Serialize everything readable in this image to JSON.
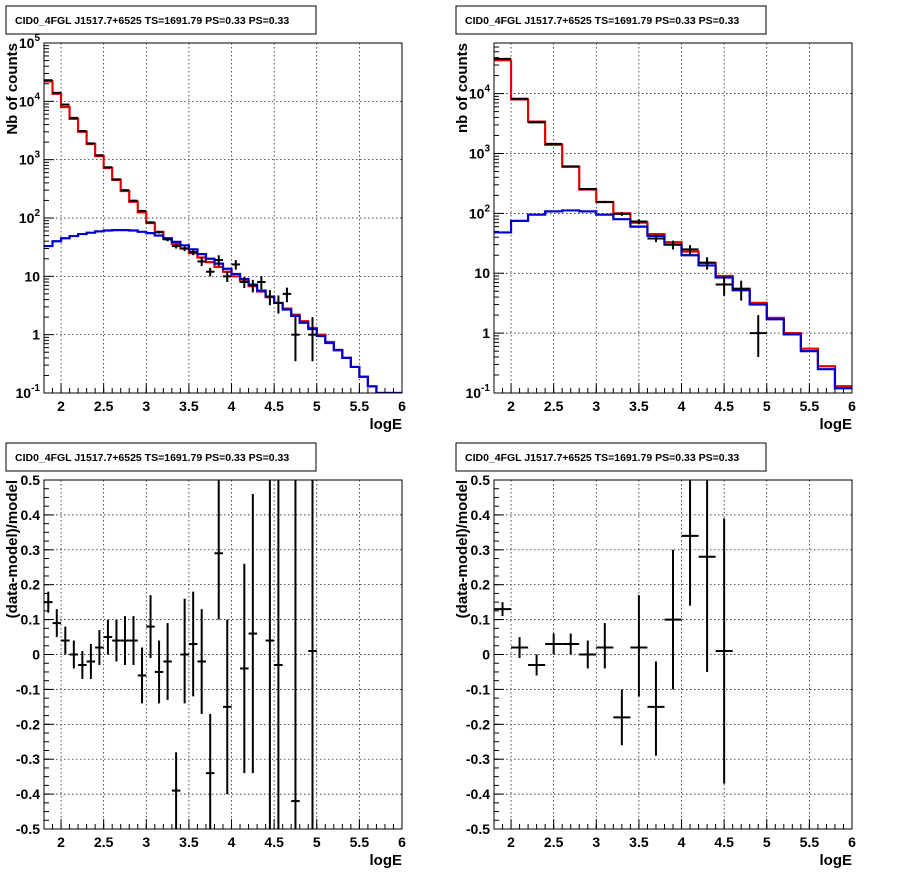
{
  "panels_title": "CID0_4FGL J1517.7+6525 TS=1691.79 PS=0.33 PS=0.33",
  "chart_data": [
    {
      "id": "counts-left",
      "type": "histogram",
      "title": "CID0_4FGL J1517.7+6525 TS=1691.79 PS=0.33 PS=0.33",
      "xlabel": "logE",
      "ylabel": "Nb of counts",
      "xlim": [
        1.8,
        6.0
      ],
      "ylim": [
        0.1,
        100000
      ],
      "log_y": true,
      "grid": true,
      "x_ticks": [
        "2",
        "2.5",
        "3",
        "3.5",
        "4",
        "4.5",
        "5",
        "5.5",
        "6"
      ],
      "y_ticks": [
        "10^-1",
        "1",
        "10",
        "10^2",
        "10^3",
        "10^4",
        "10^5"
      ],
      "bin_edges": [
        1.8,
        1.9,
        2.0,
        2.1,
        2.2,
        2.3,
        2.4,
        2.5,
        2.6,
        2.7,
        2.8,
        2.9,
        3.0,
        3.1,
        3.2,
        3.3,
        3.4,
        3.5,
        3.6,
        3.7,
        3.8,
        3.9,
        4.0,
        4.1,
        4.2,
        4.3,
        4.4,
        4.5,
        4.6,
        4.7,
        4.8,
        4.9,
        5.0,
        5.1,
        5.2,
        5.3,
        5.4,
        5.5,
        5.6,
        5.7,
        5.8,
        5.9,
        6.0
      ],
      "series": [
        {
          "name": "",
          "color": "#e00000",
          "style": "step",
          "values": [
            22000,
            13500,
            8000,
            5000,
            3000,
            1850,
            1150,
            720,
            450,
            290,
            190,
            125,
            82,
            58,
            44,
            36,
            30,
            25,
            21,
            17.5,
            14.5,
            12,
            10,
            8.2,
            6.8,
            5.5,
            4.4,
            3.5,
            2.8,
            2.2,
            1.7,
            1.3,
            1.0,
            0.75,
            0.55,
            0.4,
            0.28,
            0.19,
            0.13,
            0.1,
            0.1,
            0.1
          ]
        },
        {
          "name": "",
          "color": "#0000cc",
          "style": "step",
          "values": [
            33,
            40,
            45,
            49,
            53,
            56,
            59,
            61,
            62,
            62,
            61,
            58,
            55,
            50,
            45,
            39,
            34,
            29,
            24,
            20,
            16.5,
            13.5,
            11,
            9,
            7.2,
            5.7,
            4.5,
            3.5,
            2.7,
            2.1,
            1.6,
            1.25,
            0.95,
            0.72,
            0.54,
            0.4,
            0.28,
            0.19,
            0.13,
            0.1,
            0.1,
            0.1
          ]
        }
      ],
      "points": {
        "color": "#000000",
        "x": [
          1.85,
          1.95,
          2.05,
          2.15,
          2.25,
          2.35,
          2.45,
          2.55,
          2.65,
          2.75,
          2.85,
          2.95,
          3.05,
          3.15,
          3.25,
          3.35,
          3.45,
          3.55,
          3.65,
          3.75,
          3.85,
          3.95,
          4.05,
          4.15,
          4.25,
          4.35,
          4.45,
          4.55,
          4.65,
          4.75,
          4.85,
          4.95
        ],
        "y": [
          23000,
          14000,
          8800,
          5200,
          3100,
          1900,
          1190,
          740,
          460,
          300,
          198,
          132,
          84,
          57,
          43,
          33,
          30,
          26,
          18,
          12,
          19,
          10,
          16,
          8,
          7,
          8,
          4.5,
          3.5,
          5,
          1,
          0,
          1
        ],
        "y_lo": [
          22700,
          13800,
          8600,
          5100,
          3050,
          1850,
          1160,
          720,
          445,
          290,
          190,
          126,
          80,
          54,
          40,
          30,
          27,
          23,
          15,
          10,
          15,
          8,
          13,
          6.3,
          5.3,
          6,
          3.2,
          2.3,
          3.6,
          0.35,
          0,
          0.35
        ],
        "y_hi": [
          23300,
          14200,
          9000,
          5300,
          3150,
          1950,
          1220,
          760,
          475,
          310,
          206,
          138,
          88,
          60,
          46,
          36,
          33,
          29,
          21,
          14,
          23,
          12,
          19,
          9.7,
          8.7,
          10,
          5.8,
          4.7,
          6.4,
          2.0,
          0,
          2.0
        ]
      }
    },
    {
      "id": "counts-right",
      "type": "histogram",
      "title": "CID0_4FGL J1517.7+6525 TS=1691.79 PS=0.33 PS=0.33",
      "xlabel": "logE",
      "ylabel": "nb of counts",
      "xlim": [
        1.8,
        6.0
      ],
      "ylim": [
        0.1,
        70000
      ],
      "log_y": true,
      "grid": true,
      "x_ticks": [
        "2",
        "2.5",
        "3",
        "3.5",
        "4",
        "4.5",
        "5",
        "5.5",
        "6"
      ],
      "y_ticks": [
        "10^-1",
        "1",
        "10",
        "10^2",
        "10^3",
        "10^4"
      ],
      "bin_edges": [
        1.8,
        2.0,
        2.2,
        2.4,
        2.6,
        2.8,
        3.0,
        3.2,
        3.4,
        3.6,
        3.8,
        4.0,
        4.2,
        4.4,
        4.6,
        4.8,
        5.0,
        5.2,
        5.4,
        5.6,
        5.8,
        6.0
      ],
      "series": [
        {
          "name": "",
          "color": "#e00000",
          "style": "step",
          "values": [
            36000,
            8000,
            3400,
            1400,
            600,
            250,
            155,
            100,
            70,
            45,
            33,
            23,
            15,
            9,
            5.5,
            3.2,
            1.8,
            1.0,
            0.55,
            0.28,
            0.13
          ]
        },
        {
          "name": "",
          "color": "#0000cc",
          "style": "step",
          "values": [
            48,
            75,
            95,
            108,
            112,
            108,
            95,
            80,
            60,
            42,
            30,
            20,
            13.5,
            8.5,
            5.2,
            3.0,
            1.7,
            0.95,
            0.5,
            0.25,
            0.12
          ]
        }
      ],
      "points": {
        "color": "#000000",
        "x": [
          1.9,
          2.1,
          2.3,
          2.5,
          2.7,
          2.9,
          3.1,
          3.3,
          3.5,
          3.7,
          3.9,
          4.1,
          4.3,
          4.5,
          4.7,
          4.9
        ],
        "y": [
          38000,
          8200,
          3300,
          1450,
          610,
          255,
          155,
          98,
          73,
          38,
          30,
          25,
          15,
          6.5,
          5.5,
          1
        ],
        "y_lo": [
          37600,
          8000,
          3200,
          1400,
          590,
          245,
          148,
          91,
          66,
          33,
          25,
          20.5,
          11.5,
          4.2,
          3.5,
          0.4
        ],
        "y_hi": [
          38400,
          8400,
          3400,
          1500,
          630,
          265,
          162,
          105,
          80,
          43,
          35,
          29.5,
          18.5,
          8.8,
          7.5,
          2.0
        ]
      }
    },
    {
      "id": "residuals-left",
      "type": "scatter",
      "title": "CID0_4FGL J1517.7+6525 TS=1691.79 PS=0.33 PS=0.33",
      "xlabel": "logE",
      "ylabel": "(data-model)/model",
      "xlim": [
        1.8,
        6.0
      ],
      "ylim": [
        -0.5,
        0.5
      ],
      "grid": true,
      "x_ticks": [
        "2",
        "2.5",
        "3",
        "3.5",
        "4",
        "4.5",
        "5",
        "5.5",
        "6"
      ],
      "y_ticks": [
        "-0.5",
        "-0.4",
        "-0.3",
        "-0.2",
        "-0.1",
        "0",
        "0.1",
        "0.2",
        "0.3",
        "0.4",
        "0.5"
      ],
      "x_halfwidth": 0.05,
      "points": {
        "color": "#000000",
        "x": [
          1.85,
          1.95,
          2.05,
          2.15,
          2.25,
          2.35,
          2.45,
          2.55,
          2.65,
          2.75,
          2.85,
          2.95,
          3.05,
          3.15,
          3.25,
          3.35,
          3.45,
          3.55,
          3.65,
          3.75,
          3.85,
          3.95,
          4.05,
          4.15,
          4.25,
          4.35,
          4.45,
          4.55,
          4.65,
          4.75,
          4.85,
          4.95
        ],
        "y": [
          0.15,
          0.09,
          0.04,
          0.0,
          -0.03,
          -0.02,
          0.02,
          0.05,
          0.04,
          0.04,
          0.04,
          -0.06,
          0.08,
          -0.05,
          -0.02,
          -0.39,
          0.0,
          0.03,
          -0.02,
          -0.34,
          0.29,
          -0.15,
          null,
          -0.04,
          0.06,
          null,
          0.04,
          -0.03,
          null,
          -0.42,
          null,
          0.01
        ],
        "y_lo": [
          0.12,
          0.05,
          0.0,
          -0.04,
          -0.07,
          -0.07,
          -0.03,
          0.0,
          -0.02,
          -0.03,
          -0.03,
          -0.14,
          -0.01,
          -0.14,
          -0.13,
          -0.5,
          -0.14,
          -0.12,
          -0.17,
          -0.5,
          0.1,
          -0.4,
          null,
          -0.34,
          -0.34,
          null,
          -0.5,
          -0.5,
          null,
          -0.5,
          null,
          -0.5
        ],
        "y_hi": [
          0.18,
          0.13,
          0.08,
          0.04,
          0.01,
          0.03,
          0.07,
          0.1,
          0.1,
          0.11,
          0.11,
          0.02,
          0.17,
          0.04,
          0.09,
          -0.28,
          0.16,
          0.18,
          0.13,
          -0.17,
          0.5,
          0.1,
          null,
          0.26,
          0.46,
          null,
          0.5,
          0.5,
          null,
          0.5,
          null,
          0.5
        ]
      }
    },
    {
      "id": "residuals-right",
      "type": "scatter",
      "title": "CID0_4FGL J1517.7+6525 TS=1691.79 PS=0.33 PS=0.33",
      "xlabel": "logE",
      "ylabel": "(data-model)/model",
      "xlim": [
        1.8,
        6.0
      ],
      "ylim": [
        -0.5,
        0.5
      ],
      "grid": true,
      "x_ticks": [
        "2",
        "2.5",
        "3",
        "3.5",
        "4",
        "4.5",
        "5",
        "5.5",
        "6"
      ],
      "y_ticks": [
        "-0.5",
        "-0.4",
        "-0.3",
        "-0.2",
        "-0.1",
        "0",
        "0.1",
        "0.2",
        "0.3",
        "0.4",
        "0.5"
      ],
      "x_halfwidth": 0.1,
      "points": {
        "color": "#000000",
        "x": [
          1.9,
          2.1,
          2.3,
          2.5,
          2.7,
          2.9,
          3.1,
          3.3,
          3.5,
          3.7,
          3.9,
          4.1,
          4.3,
          4.5
        ],
        "y": [
          0.13,
          0.02,
          -0.03,
          0.03,
          0.03,
          0.0,
          0.02,
          -0.18,
          0.02,
          -0.15,
          0.1,
          0.34,
          0.28,
          0.01
        ],
        "y_lo": [
          0.11,
          -0.01,
          -0.06,
          0.0,
          0.0,
          -0.04,
          -0.04,
          -0.26,
          -0.12,
          -0.29,
          -0.1,
          0.14,
          -0.05,
          -0.37
        ],
        "y_hi": [
          0.15,
          0.05,
          0.0,
          0.06,
          0.06,
          0.04,
          0.09,
          -0.1,
          0.17,
          -0.02,
          0.3,
          0.5,
          0.5,
          0.39
        ]
      }
    }
  ]
}
